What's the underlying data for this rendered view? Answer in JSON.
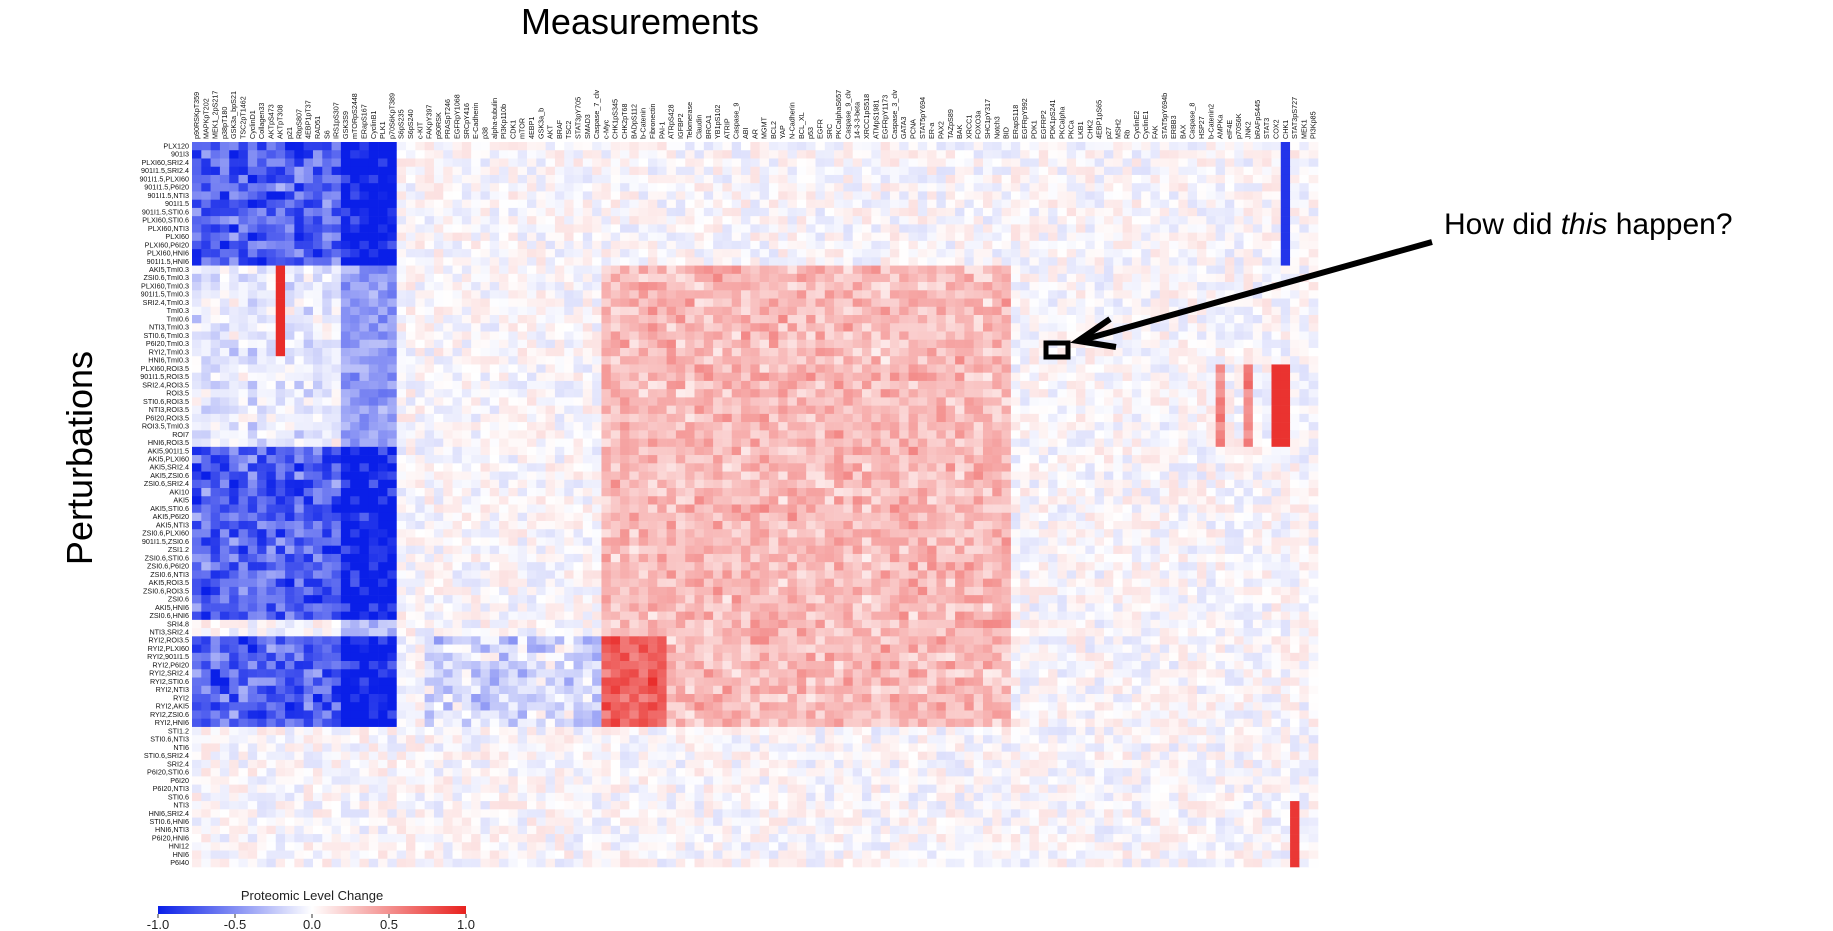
{
  "chart_data": {
    "type": "heatmap",
    "title": "Measurements",
    "ylabel": "Perturbations",
    "colorbar": {
      "title": "Proteomic Level Change",
      "ticks": [
        "-1.0",
        "-0.5",
        "0.0",
        "0.5",
        "1.0"
      ],
      "range": [
        -1.0,
        1.0
      ],
      "colors": {
        "low": "#0a1fe8",
        "mid": "#ffffff",
        "high": "#e8211e"
      }
    },
    "annotation": {
      "prefix": "How did ",
      "emph": "this",
      "suffix": " happen?"
    },
    "rows": [
      "PLX120",
      "901I3",
      "PLXI60,SRI2.4",
      "901I1.5,SRI2.4",
      "901I1.5,PLXI60",
      "901I1.5,P6I20",
      "901I1.5,NTI3",
      "901I1.5",
      "901I1.5,STI0.6",
      "PLXI60,STI0.6",
      "PLXI60,NTI3",
      "PLXI60",
      "PLXI60,P6I20",
      "PLXI60,HNI6",
      "901I1.5,HNI6",
      "AKI5,TmI0.3",
      "ZSI0.6,TmI0.3",
      "PLXI60,TmI0.3",
      "901I1.5,TmI0.3",
      "SRI2.4,TmI0.3",
      "TmI0.3",
      "TmI0.6",
      "NTI3,TmI0.3",
      "STI0.6,TmI0.3",
      "P6I20,TmI0.3",
      "RYI2,TmI0.3",
      "HNI6,TmI0.3",
      "PLXI60,ROI3.5",
      "901I1.5,ROI3.5",
      "SRI2.4,ROI3.5",
      "ROI3.5",
      "STI0.6,ROI3.5",
      "NTI3,ROI3.5",
      "P6I20,ROI3.5",
      "ROI3.5,TmI0.3",
      "ROI7",
      "HNI6,ROI3.5",
      "AKI5,901I1.5",
      "AKI5,PLXI60",
      "AKI5,SRI2.4",
      "AKI5,ZSI0.6",
      "ZSI0.6,SRI2.4",
      "AKI10",
      "AKI5",
      "AKI5,STI0.6",
      "AKI5,P6I20",
      "AKI5,NTI3",
      "ZSI0.6,PLXI60",
      "901I1.5,ZSI0.6",
      "ZSI1.2",
      "ZSI0.6,STI0.6",
      "ZSI0.6,P6I20",
      "ZSI0.6,NTI3",
      "AKI5,ROI3.5",
      "ZSI0.6,ROI3.5",
      "ZSI0.6",
      "AKI5,HNI6",
      "ZSI0.6,HNI6",
      "SRI4.8",
      "NTI3,SRI2.4",
      "RYI2,ROI3.5",
      "RYI2,PLXI60",
      "RYI2,901I1.5",
      "RYI2,P6I20",
      "RYI2,SRI2.4",
      "RYI2,STI0.6",
      "RYI2,NTI3",
      "RYI2",
      "RYI2,AKI5",
      "RYI2,ZSI0.6",
      "RYI2,HNI6",
      "STI1.2",
      "STI0.6,NTI3",
      "NTI6",
      "STI0.6,SRI2.4",
      "SRI2.4",
      "P6I20,STI0.6",
      "P6I20",
      "P6I20,NTI3",
      "STI0.6",
      "NTI3",
      "HNI6,SRI2.4",
      "STI0.6,HNI6",
      "HNI6,NTI3",
      "P6I20,HNI6",
      "HNI12",
      "HNI6",
      "P6I40"
    ],
    "columns": [
      "p90RSKpT359",
      "MAPKpT202",
      "MEK1_2pS217",
      "p38pT180",
      "GSK3a_bpS21",
      "TSC2pT1462",
      "CyclinD1",
      "Collagen33",
      "AKTpS473",
      "AKTpT308",
      "p21",
      "RbpS807",
      "4EBP1pT37",
      "RAD51",
      "S6",
      "IRS1pS307",
      "GSK3S9",
      "mTORpS2448",
      "ERapS167",
      "CyclinB1",
      "PLK1",
      "p70S6KpT389",
      "S6pS235",
      "S6pS240",
      "c-KIT",
      "FAKpY397",
      "p90RSK",
      "PRASpT246",
      "EGFRpY1068",
      "SRCpY416",
      "E-Cadherin",
      "p38",
      "alpha-tubulin",
      "PI3Kp110b",
      "CDK1",
      "mTOR",
      "4EBP1",
      "GSK3a_b",
      "AKT",
      "BRAF",
      "TSC2",
      "STAT3pY705",
      "SMAD3",
      "Caspase_7_clv",
      "c-Myc",
      "CHK1pS345",
      "CHK2pT68",
      "BADpS112",
      "b-Catenin",
      "Fibronectin",
      "PAI-1",
      "ATRpS428",
      "IGFBP2",
      "Telomerase",
      "Claudin",
      "BRCA1",
      "YB1pS102",
      "ATRIP",
      "Caspase_9",
      "ABI",
      "AR",
      "MGMT",
      "BCL2",
      "YAP",
      "N-Cadherin",
      "BCL_XL",
      "p53",
      "EGFR",
      "SRC",
      "PKCalphaS657",
      "Caspase_9_clv",
      "14-3-3-beta",
      "XRCC1pS518",
      "ATMpS1981",
      "EGFRpY1173",
      "Caspase_3_clv",
      "GATA3",
      "PCNA",
      "STAT5pY694",
      "ER-a",
      "PAX2",
      "TAZpS89",
      "BAK",
      "XRCC1",
      "FOXO3a",
      "SHC1pY317",
      "Notch3",
      "BID",
      "ERapS118",
      "EGFRpY992",
      "PDK1",
      "EGFRP2",
      "PDK1pS241",
      "PKCalpha",
      "PKCa",
      "LKB1",
      "CHK2",
      "4EBP1pS65",
      "p27",
      "MSH2",
      "Rb",
      "CyclinE2",
      "CyclinE1",
      "FAK",
      "STAT5pY694b",
      "ERBB3",
      "BAX",
      "Caspase_8",
      "HSP27",
      "b-Catenin2",
      "AMPKa",
      "eIF4E",
      "p70S6K",
      "JNK2",
      "bRAFpS445",
      "STAT3",
      "COX2",
      "CHK1",
      "STAT3pS727",
      "MEK1",
      "PI3Kp85"
    ]
  }
}
